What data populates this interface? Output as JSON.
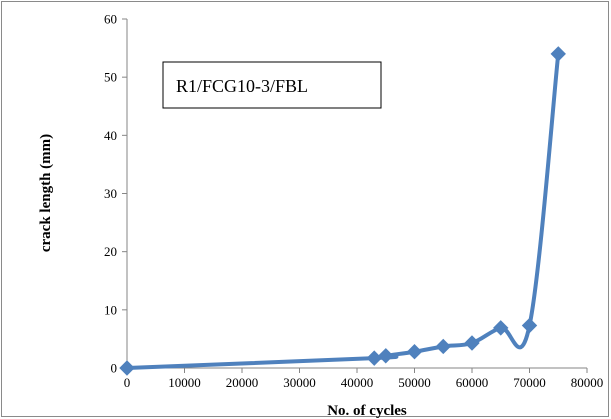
{
  "chart_data": {
    "type": "line",
    "title": "",
    "xlabel": "No. of cycles",
    "ylabel": "crack length (mm)",
    "xlim": [
      0,
      80000
    ],
    "ylim": [
      0,
      60
    ],
    "x_ticks": [
      0,
      10000,
      20000,
      30000,
      40000,
      50000,
      60000,
      70000,
      80000
    ],
    "y_ticks": [
      0,
      10,
      20,
      30,
      40,
      50,
      60
    ],
    "grid": false,
    "legend": "none",
    "annotation": "R1/FCG10-3/FBL",
    "series": [
      {
        "color": "#4F81BD",
        "marker": "diamond",
        "x": [
          0,
          43000,
          45000,
          50000,
          55000,
          60000,
          65000,
          70000,
          75000
        ],
        "y": [
          0,
          1.7,
          2.1,
          2.8,
          3.7,
          4.3,
          6.9,
          7.3,
          54
        ]
      }
    ]
  }
}
